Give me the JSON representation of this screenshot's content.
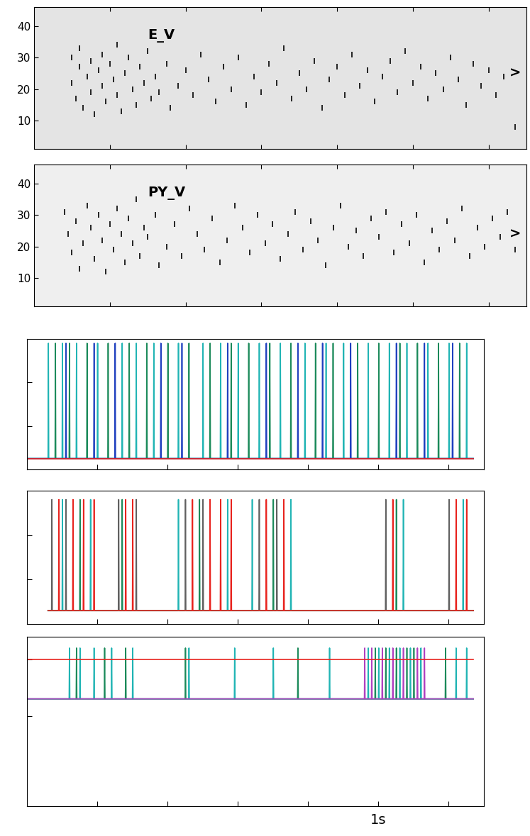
{
  "chart_data": [
    {
      "type": "raster",
      "title": "E_V",
      "color": "#000000",
      "marker": "|",
      "xlim": [
        0,
        1.3
      ],
      "xticks": [
        0.2,
        0.4,
        0.6,
        0.8,
        1.0,
        1.2
      ],
      "ylim": [
        1,
        46
      ],
      "yticks": [
        10,
        20,
        30,
        40
      ],
      "tick_labels": "y",
      "points": [
        [
          0.1,
          30
        ],
        [
          0.1,
          22
        ],
        [
          0.11,
          17
        ],
        [
          0.12,
          27
        ],
        [
          0.12,
          33
        ],
        [
          0.13,
          14
        ],
        [
          0.14,
          24
        ],
        [
          0.15,
          29
        ],
        [
          0.15,
          19
        ],
        [
          0.16,
          12
        ],
        [
          0.17,
          26
        ],
        [
          0.18,
          31
        ],
        [
          0.18,
          21
        ],
        [
          0.19,
          16
        ],
        [
          0.2,
          28
        ],
        [
          0.21,
          23
        ],
        [
          0.22,
          18
        ],
        [
          0.22,
          34
        ],
        [
          0.23,
          13
        ],
        [
          0.24,
          25
        ],
        [
          0.25,
          30
        ],
        [
          0.26,
          20
        ],
        [
          0.27,
          15
        ],
        [
          0.28,
          27
        ],
        [
          0.29,
          22
        ],
        [
          0.3,
          32
        ],
        [
          0.31,
          17
        ],
        [
          0.32,
          24
        ],
        [
          0.33,
          19
        ],
        [
          0.35,
          28
        ],
        [
          0.36,
          14
        ],
        [
          0.38,
          21
        ],
        [
          0.4,
          26
        ],
        [
          0.42,
          18
        ],
        [
          0.44,
          31
        ],
        [
          0.46,
          23
        ],
        [
          0.48,
          16
        ],
        [
          0.5,
          27
        ],
        [
          0.52,
          20
        ],
        [
          0.54,
          30
        ],
        [
          0.56,
          15
        ],
        [
          0.58,
          24
        ],
        [
          0.6,
          19
        ],
        [
          0.62,
          28
        ],
        [
          0.64,
          22
        ],
        [
          0.66,
          33
        ],
        [
          0.68,
          17
        ],
        [
          0.7,
          25
        ],
        [
          0.72,
          20
        ],
        [
          0.74,
          29
        ],
        [
          0.76,
          14
        ],
        [
          0.78,
          23
        ],
        [
          0.8,
          27
        ],
        [
          0.82,
          18
        ],
        [
          0.84,
          31
        ],
        [
          0.86,
          21
        ],
        [
          0.88,
          26
        ],
        [
          0.9,
          16
        ],
        [
          0.92,
          24
        ],
        [
          0.94,
          29
        ],
        [
          0.96,
          19
        ],
        [
          0.98,
          32
        ],
        [
          1.0,
          22
        ],
        [
          1.02,
          27
        ],
        [
          1.04,
          17
        ],
        [
          1.06,
          25
        ],
        [
          1.08,
          20
        ],
        [
          1.1,
          30
        ],
        [
          1.12,
          23
        ],
        [
          1.14,
          15
        ],
        [
          1.16,
          28
        ],
        [
          1.18,
          21
        ],
        [
          1.2,
          26
        ],
        [
          1.22,
          18
        ],
        [
          1.24,
          24
        ],
        [
          1.27,
          8
        ]
      ],
      "annotations": [
        {
          "text": "E_V",
          "x": 0.3,
          "y": 37
        },
        {
          "text": ">",
          "x": 1.27,
          "y": 25
        }
      ]
    },
    {
      "type": "raster",
      "title": "PY_V",
      "color": "#000000",
      "marker": "|",
      "xlim": [
        0,
        1.3
      ],
      "xticks": [
        0.2,
        0.4,
        0.6,
        0.8,
        1.0,
        1.2
      ],
      "ylim": [
        1,
        46
      ],
      "yticks": [
        10,
        20,
        30,
        40
      ],
      "tick_labels": "y",
      "points": [
        [
          0.08,
          31
        ],
        [
          0.09,
          24
        ],
        [
          0.1,
          18
        ],
        [
          0.11,
          28
        ],
        [
          0.12,
          13
        ],
        [
          0.13,
          21
        ],
        [
          0.14,
          33
        ],
        [
          0.15,
          26
        ],
        [
          0.16,
          16
        ],
        [
          0.17,
          30
        ],
        [
          0.18,
          22
        ],
        [
          0.19,
          12
        ],
        [
          0.2,
          27
        ],
        [
          0.21,
          19
        ],
        [
          0.22,
          32
        ],
        [
          0.23,
          24
        ],
        [
          0.24,
          15
        ],
        [
          0.25,
          29
        ],
        [
          0.26,
          21
        ],
        [
          0.27,
          35
        ],
        [
          0.28,
          17
        ],
        [
          0.29,
          26
        ],
        [
          0.3,
          23
        ],
        [
          0.32,
          30
        ],
        [
          0.33,
          14
        ],
        [
          0.35,
          20
        ],
        [
          0.37,
          27
        ],
        [
          0.39,
          17
        ],
        [
          0.41,
          32
        ],
        [
          0.43,
          24
        ],
        [
          0.45,
          19
        ],
        [
          0.47,
          29
        ],
        [
          0.49,
          15
        ],
        [
          0.51,
          22
        ],
        [
          0.53,
          33
        ],
        [
          0.55,
          26
        ],
        [
          0.57,
          18
        ],
        [
          0.59,
          30
        ],
        [
          0.61,
          21
        ],
        [
          0.63,
          27
        ],
        [
          0.65,
          16
        ],
        [
          0.67,
          24
        ],
        [
          0.69,
          31
        ],
        [
          0.71,
          19
        ],
        [
          0.73,
          28
        ],
        [
          0.75,
          22
        ],
        [
          0.77,
          14
        ],
        [
          0.79,
          26
        ],
        [
          0.81,
          33
        ],
        [
          0.83,
          20
        ],
        [
          0.85,
          25
        ],
        [
          0.87,
          17
        ],
        [
          0.89,
          29
        ],
        [
          0.91,
          23
        ],
        [
          0.93,
          31
        ],
        [
          0.95,
          18
        ],
        [
          0.97,
          27
        ],
        [
          0.99,
          21
        ],
        [
          1.01,
          30
        ],
        [
          1.03,
          15
        ],
        [
          1.05,
          25
        ],
        [
          1.07,
          19
        ],
        [
          1.09,
          28
        ],
        [
          1.11,
          22
        ],
        [
          1.13,
          32
        ],
        [
          1.15,
          17
        ],
        [
          1.17,
          26
        ],
        [
          1.19,
          20
        ],
        [
          1.21,
          29
        ],
        [
          1.23,
          23
        ],
        [
          1.25,
          31
        ],
        [
          1.27,
          19
        ]
      ],
      "annotations": [
        {
          "text": "PY_V",
          "x": 0.3,
          "y": 37
        },
        {
          "text": ">",
          "x": 1.27,
          "y": 24
        }
      ]
    },
    {
      "type": "line",
      "xlim": [
        0,
        1.3
      ],
      "xticks": [
        0.2,
        0.4,
        0.6,
        0.8,
        1.0,
        1.2
      ],
      "ylim": [
        0,
        3
      ],
      "yticks": [
        1,
        2
      ],
      "tick_labels": false,
      "trace_span": [
        0.0,
        1.27
      ],
      "baseline": 0.25,
      "peak": 2.9,
      "series": [
        {
          "color": "#20b4b4",
          "values": [
            0.06,
            0.1,
            0.14,
            0.2,
            0.27,
            0.31,
            0.36,
            0.43,
            0.5,
            0.55,
            0.6,
            0.66,
            0.72,
            0.79,
            0.85,
            0.9,
            0.97,
            1.03,
            1.08,
            1.14,
            1.2,
            1.25
          ]
        },
        {
          "color": "#1b8a5a",
          "values": [
            0.08,
            0.12,
            0.17,
            0.23,
            0.29,
            0.34,
            0.4,
            0.46,
            0.52,
            0.58,
            0.63,
            0.69,
            0.75,
            0.82,
            0.87,
            0.94,
            1.0,
            1.06,
            1.11,
            1.17,
            1.23
          ]
        },
        {
          "color": "#1f3fbf",
          "values": [
            0.11,
            0.19,
            0.25,
            0.38,
            0.44,
            0.57,
            0.68,
            0.77,
            0.84,
            0.92,
            1.05,
            1.13,
            1.21
          ]
        },
        {
          "color": "#e8231e",
          "values": []
        }
      ]
    },
    {
      "type": "line",
      "xlim": [
        0,
        1.3
      ],
      "xticks": [
        0.2,
        0.4,
        0.6,
        0.8,
        1.0,
        1.2
      ],
      "ylim": [
        0,
        3
      ],
      "yticks": [
        1,
        2
      ],
      "tick_labels": false,
      "trace_span": [
        0.06,
        1.27
      ],
      "baseline": 0.3,
      "peak": 2.8,
      "series": [
        {
          "color": "#606060",
          "values": [
            0.07,
            0.11,
            0.26,
            0.31,
            0.45,
            0.5,
            0.66,
            0.71,
            1.02,
            1.2
          ]
        },
        {
          "color": "#20b4b4",
          "values": [
            0.1,
            0.18,
            0.43,
            0.57,
            0.64,
            0.75,
            1.07,
            1.24
          ]
        },
        {
          "color": "#1b8a5a",
          "values": [
            0.15,
            0.27,
            0.49,
            0.7,
            1.05
          ]
        },
        {
          "color": "#e8231e",
          "values": [
            0.09,
            0.13,
            0.16,
            0.19,
            0.28,
            0.3,
            0.47,
            0.52,
            0.55,
            0.58,
            0.68,
            0.73,
            1.04,
            1.22,
            1.25
          ]
        }
      ]
    },
    {
      "type": "line",
      "xlim": [
        0,
        1.3
      ],
      "xticks": [
        0.2,
        0.4,
        0.6,
        0.8,
        1.0,
        1.2
      ],
      "ylim": [
        -0.6,
        2.4
      ],
      "yticks": [
        1,
        2
      ],
      "tick_labels": false,
      "trace_span": [
        0.0,
        1.27
      ],
      "baseline": 1.3,
      "peak": 2.2,
      "threshold": {
        "value": 2.0,
        "color": "#e8231e"
      },
      "series": [
        {
          "color": "#20b4b4",
          "values": [
            0.12,
            0.15,
            0.19,
            0.24,
            0.3,
            0.46,
            0.59,
            0.7,
            0.86,
            0.97,
            1.0,
            1.03,
            1.06,
            1.09,
            1.12,
            1.22,
            1.25
          ]
        },
        {
          "color": "#1b8a5a",
          "values": [
            0.14,
            0.22,
            0.28,
            0.45,
            0.77,
            0.99,
            1.02,
            1.05,
            1.08,
            1.1,
            1.19
          ]
        },
        {
          "color": "#b040c0",
          "values": [
            0.96,
            0.98,
            1.01,
            1.04,
            1.07,
            1.11,
            1.13
          ]
        }
      ],
      "annotations": [
        {
          "text": "1s",
          "x": 1.0
        }
      ]
    }
  ]
}
